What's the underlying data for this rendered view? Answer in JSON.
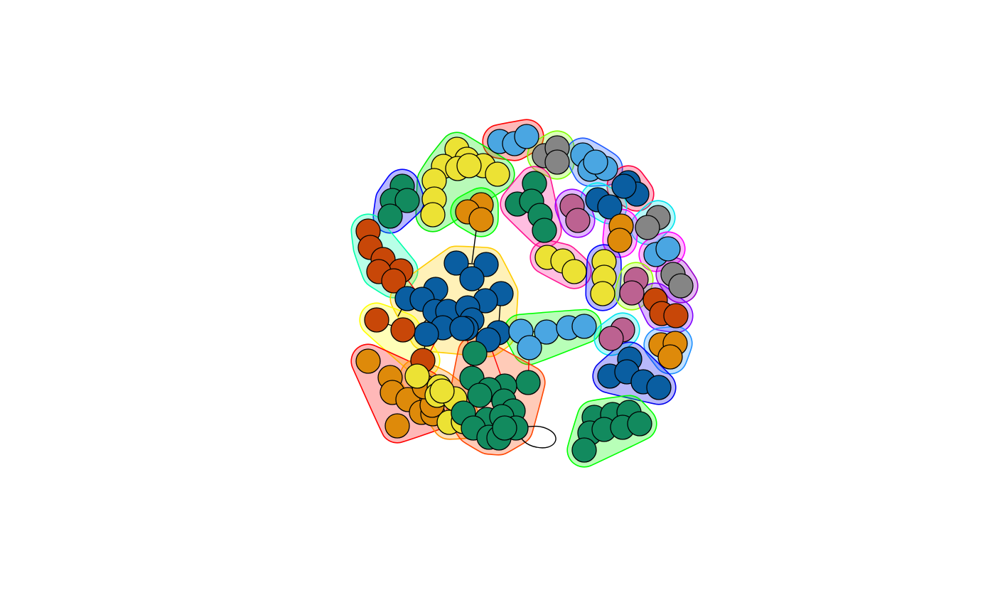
{
  "colors": {
    "node_blue": "#0a5ea1",
    "node_lightblue": "#4aa6e2",
    "node_green": "#128a5e",
    "node_orange": "#de8a0a",
    "node_vermilion": "#c84708",
    "node_yellow": "#ece234",
    "node_gray": "#858585",
    "node_pink": "#bc6291",
    "edge_default": "#000000",
    "edge_between_groups": "#ff0000"
  },
  "graph": {
    "type": "network-with-community-hulls",
    "node_outline": "black",
    "labels_shown": false,
    "groups": [
      {
        "id": "g01",
        "hull_color": "#ff0000",
        "node_color": "node_lightblue",
        "nodes": 3
      },
      {
        "id": "g02",
        "hull_color": "#00ee00",
        "node_color": "node_yellow",
        "nodes": 10
      },
      {
        "id": "g03",
        "hull_color": "#7fff00",
        "node_color": "node_gray",
        "nodes": 3
      },
      {
        "id": "g04",
        "hull_color": "#1e5aff",
        "node_color": "node_lightblue",
        "nodes": 4
      },
      {
        "id": "g05",
        "hull_color": "#0000ff",
        "node_color": "node_green",
        "nodes": 4
      },
      {
        "id": "g06",
        "hull_color": "#00ff00",
        "node_color": "node_orange",
        "nodes": 3
      },
      {
        "id": "g07",
        "hull_color": "#ff1493",
        "node_color": "node_green",
        "nodes": 5
      },
      {
        "id": "g08",
        "hull_color": "#ff0040",
        "node_color": "node_blue",
        "nodes": 3
      },
      {
        "id": "g09",
        "hull_color": "#00eeee",
        "node_color": "node_blue",
        "nodes": 2
      },
      {
        "id": "g10",
        "hull_color": "#9900ff",
        "node_color": "node_pink",
        "nodes": 2
      },
      {
        "id": "g11",
        "hull_color": "#00e5ee",
        "node_color": "node_gray",
        "nodes": 2
      },
      {
        "id": "g12",
        "hull_color": "#ff00ff",
        "node_color": "node_orange",
        "nodes": 2
      },
      {
        "id": "g13",
        "hull_color": "#00ffaa",
        "node_color": "node_vermilion",
        "nodes": 5
      },
      {
        "id": "g14",
        "hull_color": "#ffcc00",
        "node_color": "node_blue",
        "nodes": 18
      },
      {
        "id": "g15",
        "hull_color": "#ff1493",
        "node_color": "node_yellow",
        "nodes": 3
      },
      {
        "id": "g16",
        "hull_color": "#0000ff",
        "node_color": "node_yellow",
        "nodes": 3
      },
      {
        "id": "g17",
        "hull_color": "#ff00ff",
        "node_color": "node_lightblue",
        "nodes": 2
      },
      {
        "id": "g18",
        "hull_color": "#9900cc",
        "node_color": "node_gray",
        "nodes": 2
      },
      {
        "id": "g19",
        "hull_color": "#99ff00",
        "node_color": "node_pink",
        "nodes": 2
      },
      {
        "id": "g20",
        "hull_color": "#7f00ff",
        "node_color": "node_vermilion",
        "nodes": 3
      },
      {
        "id": "g21",
        "hull_color": "#ffff00",
        "node_color": "node_vermilion",
        "nodes": 3
      },
      {
        "id": "g22",
        "hull_color": "#00ff00",
        "node_color": "node_lightblue",
        "nodes": 6
      },
      {
        "id": "g23",
        "hull_color": "#00e5ee",
        "node_color": "node_pink",
        "nodes": 2
      },
      {
        "id": "g24",
        "hull_color": "#1e90ff",
        "node_color": "node_orange",
        "nodes": 3
      },
      {
        "id": "g25",
        "hull_color": "#0000ee",
        "node_color": "node_blue",
        "nodes": 5
      },
      {
        "id": "g26",
        "hull_color": "#ff0000",
        "node_color": "node_orange",
        "nodes": 9
      },
      {
        "id": "g27",
        "hull_color": "#ff8c00",
        "node_color": "node_yellow",
        "nodes": 7
      },
      {
        "id": "g28",
        "hull_color": "#ff4500",
        "node_color": "node_green",
        "nodes": 15
      },
      {
        "id": "g29",
        "hull_color": "#00ff00",
        "node_color": "node_green",
        "nodes": 9
      }
    ]
  }
}
